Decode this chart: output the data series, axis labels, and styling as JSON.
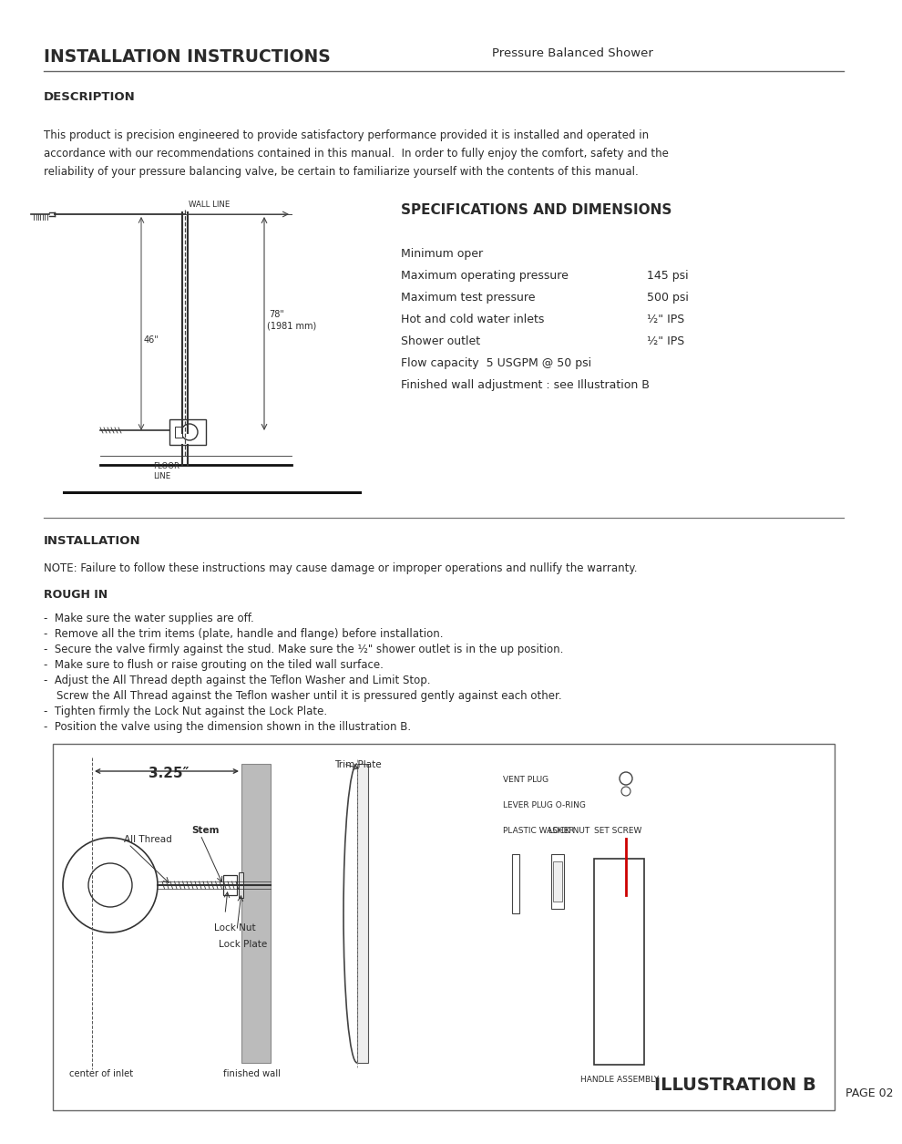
{
  "title": "INSTALLATION INSTRUCTIONS",
  "subtitle": "Pressure Balanced Shower",
  "bg_color": "#ffffff",
  "text_color": "#2a2a2a",
  "section1_header": "DESCRIPTION",
  "description_text": "This product is precision engineered to provide satisfactory performance provided it is installed and operated in\naccordance with our recommendations contained in this manual.  In order to fully enjoy the comfort, safety and the\nreliability of your pressure balancing valve, be certain to familiarize yourself with the contents of this manual.",
  "specs_header": "SPECIFICATIONS AND DIMENSIONS",
  "spec_line1": "Minimum oper",
  "spec_line2_label": "Maximum operating pressure",
  "spec_line2_val": "145 psi",
  "spec_line3_label": "Maximum test pressure",
  "spec_line3_val": "500 psi",
  "spec_line4_label": "Hot and cold water inlets",
  "spec_line4_val": "½\" IPS",
  "spec_line5_label": "Shower outlet",
  "spec_line5_val": "½\" IPS",
  "spec_line6": "Flow capacity  5 USGPM @ 50 psi",
  "spec_line7": "Finished wall adjustment : see Illustration B",
  "section2_header": "INSTALLATION",
  "note_text": "NOTE: Failure to follow these instructions may cause damage or improper operations and nullify the warranty.",
  "rough_in_header": "ROUGH IN",
  "bullet_items": [
    "Make sure the water supplies are off.",
    "Remove all the trim items (plate, handle and flange) before installation.",
    "Secure the valve firmly against the stud. Make sure the ½\" shower outlet is in the up position.",
    "Make sure to flush or raise grouting on the tiled wall surface.",
    "Adjust the All Thread depth against the Teflon Washer and Limit Stop."
  ],
  "bullet_screw_line": "   Screw the All Thread against the Teflon washer until it is pressured gently against each other.",
  "bullet_item6": "Tighten firmly the Lock Nut against the Lock Plate.",
  "bullet_item7": "Position the valve using the dimension shown in the illustration B.",
  "page_num": "PAGE 02",
  "illus_b_label": "ILLUSTRATION B",
  "dim_label": "3.25″",
  "wall_line_label": "WALL LINE",
  "floor_line_label1": "FLOOR",
  "floor_line_label2": "LINE",
  "dim_78": "78\"",
  "dim_78mm": "(1981 mm)",
  "dim_46": "46\"",
  "label_all_thread": "All Thread",
  "label_stem": "Stem",
  "label_lock_nut": "Lock Nut",
  "label_lock_plate": "Lock Plate",
  "label_center": "center of inlet",
  "label_fin_wall": "finished wall",
  "label_trim_plate": "Trim Plate",
  "label_vent_plug": "VENT PLUG",
  "label_lever": "LEVER PLUG O-RING",
  "label_plastic": "PLASTIC WASHER",
  "label_lock_nut2": "LOCK NUT",
  "label_set_screw": "SET SCREW",
  "label_handle": "HANDLE ASSEMBLY"
}
